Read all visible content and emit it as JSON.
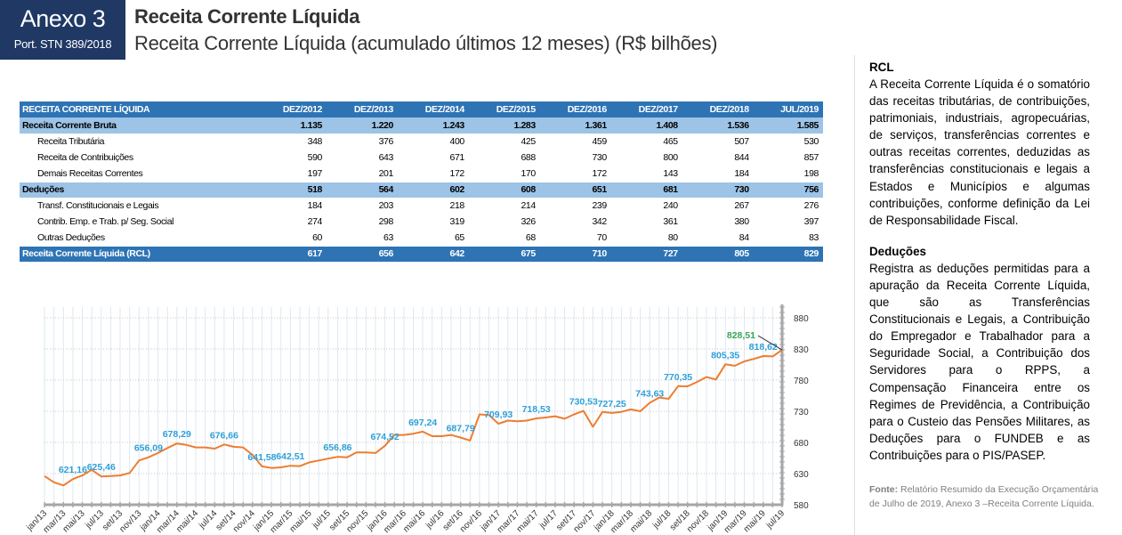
{
  "header": {
    "annex_title": "Anexo 3",
    "annex_subtitle": "Port. STN 389/2018",
    "title": "Receita Corrente Líquida",
    "subtitle": "Receita Corrente Líquida (acumulado últimos 12 meses) (R$ bilhões)",
    "brand_color": "#1f3864"
  },
  "table": {
    "header_label": "RECEITA CORRENTE LÍQUIDA",
    "columns": [
      "DEZ/2012",
      "DEZ/2013",
      "DEZ/2014",
      "DEZ/2015",
      "DEZ/2016",
      "DEZ/2017",
      "DEZ/2018",
      "JUL/2019"
    ],
    "rows": [
      {
        "type": "group",
        "label": "Receita Corrente Bruta",
        "values": [
          "1.135",
          "1.220",
          "1.243",
          "1.283",
          "1.361",
          "1.408",
          "1.536",
          "1.585"
        ]
      },
      {
        "type": "sub",
        "label": "Receita Tributária",
        "values": [
          "348",
          "376",
          "400",
          "425",
          "459",
          "465",
          "507",
          "530"
        ]
      },
      {
        "type": "sub",
        "label": "Receita de Contribuições",
        "values": [
          "590",
          "643",
          "671",
          "688",
          "730",
          "800",
          "844",
          "857"
        ]
      },
      {
        "type": "sub",
        "label": "Demais Receitas Correntes",
        "values": [
          "197",
          "201",
          "172",
          "170",
          "172",
          "143",
          "184",
          "198"
        ]
      },
      {
        "type": "group",
        "label": "Deduções",
        "values": [
          "518",
          "564",
          "602",
          "608",
          "651",
          "681",
          "730",
          "756"
        ]
      },
      {
        "type": "sub",
        "label": "Transf. Constitucionais e Legais",
        "values": [
          "184",
          "203",
          "218",
          "214",
          "239",
          "240",
          "267",
          "276"
        ]
      },
      {
        "type": "sub",
        "label": "Contrib. Emp. e Trab. p/ Seg. Social",
        "values": [
          "274",
          "298",
          "319",
          "326",
          "342",
          "361",
          "380",
          "397"
        ]
      },
      {
        "type": "sub",
        "label": "Outras Deduções",
        "values": [
          "60",
          "63",
          "65",
          "68",
          "70",
          "80",
          "84",
          "83"
        ]
      },
      {
        "type": "total",
        "label": "Receita Corrente Líquida (RCL)",
        "values": [
          "617",
          "656",
          "642",
          "675",
          "710",
          "727",
          "805",
          "829"
        ]
      }
    ],
    "header_color": "#2e74b5",
    "group_color": "#9dc3e6"
  },
  "chart_data": {
    "type": "line",
    "title": "Receita Corrente Líquida (acumulado últimos 12 meses) (R$ bilhões)",
    "xlabel": "",
    "ylabel": "",
    "ylim": [
      580,
      880
    ],
    "yticks": [
      580,
      630,
      680,
      730,
      780,
      830,
      880
    ],
    "y_axis_position": "right",
    "grid": true,
    "line_color": "#ed7d31",
    "label_color": "#2e9fd8",
    "highlight_color": "#3aa655",
    "x_tick_labels": [
      "jan/13",
      "mar/13",
      "mai/13",
      "jul/13",
      "set/13",
      "nov/13",
      "jan/14",
      "mar/14",
      "mai/14",
      "jul/14",
      "set/14",
      "nov/14",
      "jan/15",
      "mar/15",
      "mai/15",
      "jul/15",
      "set/15",
      "nov/15",
      "jan/16",
      "mar/16",
      "mai/16",
      "jul/16",
      "set/16",
      "nov/16",
      "jan/17",
      "mar/17",
      "mai/17",
      "jul/17",
      "set/17",
      "nov/17",
      "jan/18",
      "mar/18",
      "mai/18",
      "jul/18",
      "set/18",
      "nov/18",
      "jan/19",
      "mar/19",
      "mai/19",
      "jul/19"
    ],
    "series": [
      {
        "name": "RCL",
        "values": [
          626,
          616,
          611,
          621.16,
          627,
          636,
          625.46,
          626,
          627,
          631,
          651,
          656.09,
          663,
          671,
          678.29,
          676,
          672,
          672,
          670,
          676.66,
          673,
          672,
          660,
          641.58,
          639,
          640,
          642.51,
          642,
          648,
          651,
          654,
          656.86,
          656,
          664,
          664,
          663,
          674.52,
          692,
          692,
          694,
          697.24,
          690,
          690,
          692,
          687.79,
          683,
          725,
          724,
          709.93,
          715,
          714,
          715,
          718.53,
          720,
          722,
          718,
          725,
          730.53,
          705,
          729,
          727.25,
          729,
          733,
          730,
          743.63,
          752,
          750,
          770.35,
          770,
          777,
          785,
          781,
          805.35,
          803,
          810,
          814,
          818.62,
          818,
          828.51
        ]
      }
    ],
    "annotations": [
      {
        "index": 3,
        "label": "621,16"
      },
      {
        "index": 6,
        "label": "625,46"
      },
      {
        "index": 11,
        "label": "656,09"
      },
      {
        "index": 14,
        "label": "678,29"
      },
      {
        "index": 19,
        "label": "676,66"
      },
      {
        "index": 23,
        "label": "641,58"
      },
      {
        "index": 26,
        "label": "642,51"
      },
      {
        "index": 31,
        "label": "656,86"
      },
      {
        "index": 36,
        "label": "674,52"
      },
      {
        "index": 40,
        "label": "697,24"
      },
      {
        "index": 44,
        "label": "687,79"
      },
      {
        "index": 48,
        "label": "709,93"
      },
      {
        "index": 52,
        "label": "718,53"
      },
      {
        "index": 57,
        "label": "730,53"
      },
      {
        "index": 60,
        "label": "727,25"
      },
      {
        "index": 64,
        "label": "743,63"
      },
      {
        "index": 67,
        "label": "770,35"
      },
      {
        "index": 72,
        "label": "805,35"
      },
      {
        "index": 76,
        "label": "818,62"
      },
      {
        "index": 78,
        "label": "828,51",
        "highlight": true
      }
    ]
  },
  "side": {
    "rcl_heading": "RCL",
    "rcl_text": "A Receita Corrente Líquida é o somatório das receitas tributárias, de contribuições, patrimoniais, industriais, agropecuárias, de serviços, transferências correntes e outras receitas correntes, deduzidas as transferências constitucionais e legais a Estados e Municípios e algumas contribuições, conforme definição da Lei de Responsabilidade Fiscal.",
    "deducoes_heading": "Deduções",
    "deducoes_text": "Registra as deduções permitidas para a apuração da Receita Corrente Líquida, que são as Transferências Constitucionais e Legais, a Contribuição do Empregador e Trabalhador para a Seguridade Social, a Contribuição dos Servidores para o RPPS, a Compensação Financeira entre os Regimes de Previdência, a Contribuição para o Custeio das Pensões Militares, as Deduções para o FUNDEB e as Contribuições para o PIS/PASEP.",
    "source_label": "Fonte:",
    "source_text": " Relatório Resumido da Execução Orçamentária de Julho de 2019, Anexo 3 –Receita Corrente Líquida."
  }
}
